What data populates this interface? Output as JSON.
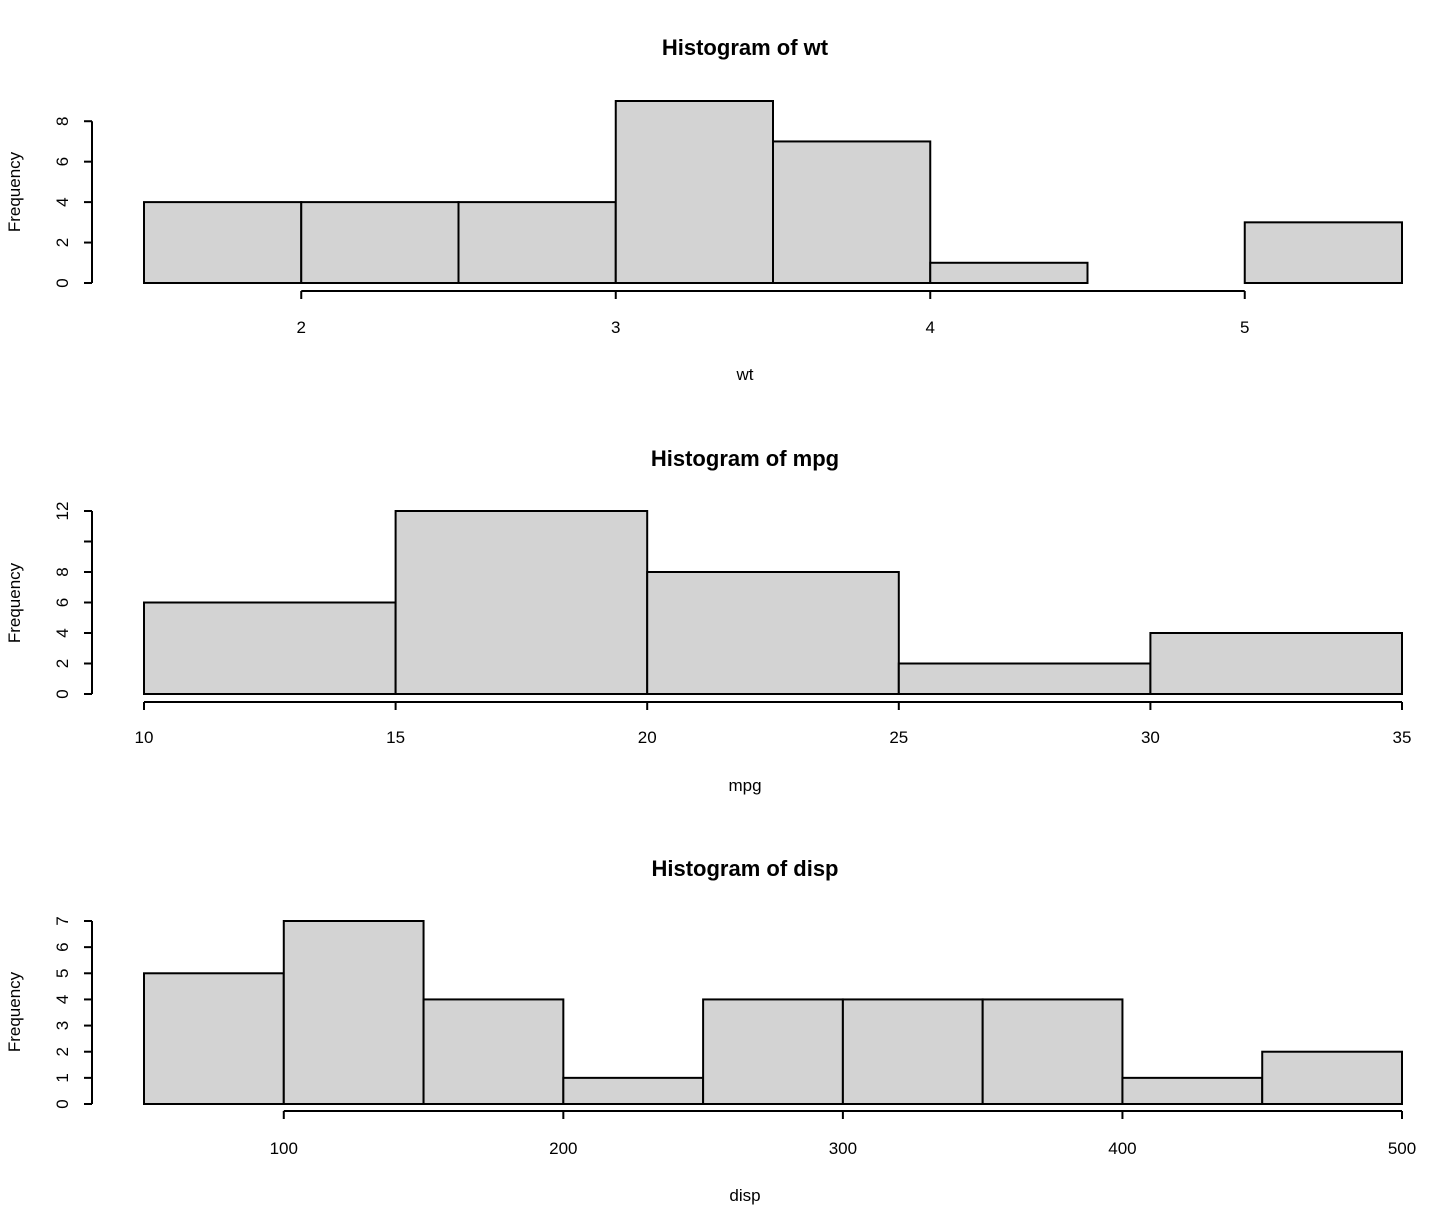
{
  "chart_data": [
    {
      "type": "bar",
      "subtype": "histogram",
      "title": "Histogram of wt",
      "xlabel": "wt",
      "ylabel": "Frequency",
      "breaks": [
        1.5,
        2.0,
        2.5,
        3.0,
        3.5,
        4.0,
        4.5,
        5.0,
        5.5
      ],
      "values": [
        4,
        4,
        4,
        9,
        7,
        1,
        0,
        3
      ],
      "xticks": [
        2,
        3,
        4,
        5
      ],
      "xtick_labels": [
        "2",
        "3",
        "4",
        "5"
      ],
      "yticks": [
        0,
        2,
        4,
        6,
        8
      ],
      "ytick_labels": [
        "0",
        "2",
        "4",
        "6",
        "8"
      ],
      "xlim": [
        1.5,
        5.5
      ],
      "ylim": [
        0,
        9
      ],
      "bar_color": "#d3d3d3",
      "grid": false
    },
    {
      "type": "bar",
      "subtype": "histogram",
      "title": "Histogram of mpg",
      "xlabel": "mpg",
      "ylabel": "Frequency",
      "breaks": [
        10,
        15,
        20,
        25,
        30,
        35
      ],
      "values": [
        6,
        12,
        8,
        2,
        4
      ],
      "xticks": [
        10,
        15,
        20,
        25,
        30,
        35
      ],
      "xtick_labels": [
        "10",
        "15",
        "20",
        "25",
        "30",
        "35"
      ],
      "yticks": [
        0,
        2,
        4,
        6,
        8,
        10,
        12
      ],
      "ytick_labels": [
        "0",
        "2",
        "4",
        "6",
        "8",
        "",
        "12"
      ],
      "xlim": [
        10,
        35
      ],
      "ylim": [
        0,
        12
      ],
      "bar_color": "#d3d3d3",
      "grid": false
    },
    {
      "type": "bar",
      "subtype": "histogram",
      "title": "Histogram of disp",
      "xlabel": "disp",
      "ylabel": "Frequency",
      "breaks": [
        50,
        100,
        150,
        200,
        250,
        300,
        350,
        400,
        450,
        500
      ],
      "values": [
        5,
        7,
        4,
        1,
        4,
        4,
        4,
        1,
        2
      ],
      "xticks": [
        100,
        200,
        300,
        400,
        500
      ],
      "xtick_labels": [
        "100",
        "200",
        "300",
        "400",
        "500"
      ],
      "yticks": [
        0,
        1,
        2,
        3,
        4,
        5,
        6,
        7
      ],
      "ytick_labels": [
        "0",
        "1",
        "2",
        "3",
        "4",
        "5",
        "6",
        "7"
      ],
      "xlim": [
        50,
        500
      ],
      "ylim": [
        0,
        7
      ],
      "bar_color": "#d3d3d3",
      "grid": false
    }
  ]
}
